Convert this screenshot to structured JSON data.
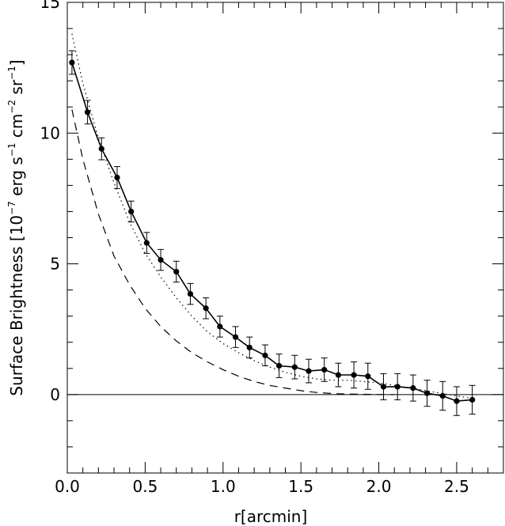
{
  "chart_data": {
    "type": "line",
    "title": "",
    "xlabel": "r[arcmin]",
    "ylabel": {
      "text_parts": [
        "Surface Brightness  [10",
        "−7",
        " erg s",
        "−1",
        "  cm",
        "−2",
        " sr",
        "−1",
        "]"
      ]
    },
    "xlim": [
      0.0,
      2.8
    ],
    "ylim": [
      -3,
      15
    ],
    "xticks": [
      0.0,
      0.5,
      1.0,
      1.5,
      2.0,
      2.5
    ],
    "xtick_labels": [
      "0.0",
      "0.5",
      "1.0",
      "1.5",
      "2.0",
      "2.5"
    ],
    "yticks": [
      0,
      5,
      10,
      15
    ],
    "ytick_labels": [
      "0",
      "5",
      "10",
      "15"
    ],
    "grid": false,
    "zero_line": true,
    "series": [
      {
        "style": "solid-with-markers-and-errorbars",
        "x": [
          0.03,
          0.13,
          0.22,
          0.32,
          0.41,
          0.51,
          0.6,
          0.7,
          0.79,
          0.89,
          0.98,
          1.08,
          1.17,
          1.27,
          1.36,
          1.46,
          1.55,
          1.65,
          1.74,
          1.84,
          1.93,
          2.03,
          2.12,
          2.22,
          2.31,
          2.41,
          2.5,
          2.6
        ],
        "y": [
          12.7,
          10.8,
          9.4,
          8.3,
          7.0,
          5.8,
          5.15,
          4.7,
          3.85,
          3.3,
          2.6,
          2.2,
          1.8,
          1.5,
          1.1,
          1.05,
          0.9,
          0.95,
          0.75,
          0.75,
          0.7,
          0.3,
          0.3,
          0.25,
          0.05,
          -0.05,
          -0.25,
          -0.2
        ],
        "yerr": [
          0.45,
          0.45,
          0.42,
          0.42,
          0.4,
          0.4,
          0.4,
          0.4,
          0.4,
          0.4,
          0.4,
          0.4,
          0.4,
          0.4,
          0.45,
          0.45,
          0.45,
          0.45,
          0.45,
          0.5,
          0.5,
          0.5,
          0.5,
          0.5,
          0.5,
          0.55,
          0.55,
          0.55
        ]
      },
      {
        "style": "dotted",
        "x": [
          0.03,
          0.1,
          0.2,
          0.3,
          0.4,
          0.5,
          0.6,
          0.7,
          0.8,
          0.9,
          1.0,
          1.1,
          1.2,
          1.3,
          1.4,
          1.5,
          1.6,
          1.7,
          1.8,
          1.9,
          2.0,
          2.1,
          2.2,
          2.3,
          2.4,
          2.5,
          2.6
        ],
        "y": [
          13.8,
          11.9,
          9.8,
          8.1,
          6.6,
          5.4,
          4.5,
          3.7,
          3.0,
          2.4,
          1.95,
          1.6,
          1.3,
          1.05,
          0.85,
          0.7,
          0.6,
          0.55,
          0.55,
          0.5,
          0.45,
          0.35,
          0.25,
          0.15,
          0.05,
          -0.05,
          -0.15
        ]
      },
      {
        "style": "dashed",
        "x": [
          0.03,
          0.1,
          0.2,
          0.3,
          0.4,
          0.5,
          0.6,
          0.7,
          0.8,
          0.9,
          1.0,
          1.1,
          1.2,
          1.3,
          1.4,
          1.5,
          1.6,
          1.7,
          1.8,
          1.9,
          2.0,
          2.1
        ],
        "y": [
          10.9,
          9.0,
          6.9,
          5.3,
          4.2,
          3.3,
          2.6,
          2.05,
          1.6,
          1.25,
          0.95,
          0.7,
          0.5,
          0.35,
          0.25,
          0.15,
          0.08,
          0.04,
          0.02,
          0.01,
          0.0,
          0.0
        ]
      }
    ]
  }
}
